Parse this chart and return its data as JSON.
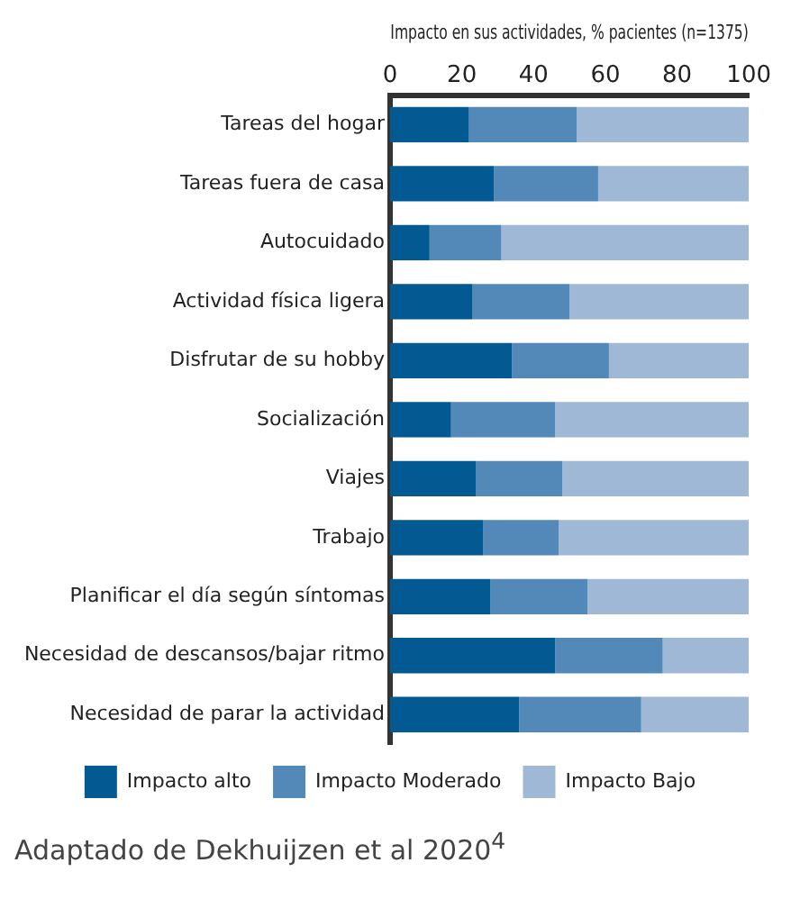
{
  "chart_data": {
    "type": "bar",
    "orientation": "horizontal",
    "stacked": true,
    "xlabel": "Impacto en sus actividades, % pacientes (n=1375)",
    "categories": [
      "Tareas del hogar",
      "Tareas fuera de casa",
      "Autocuidado",
      "Actividad física ligera",
      "Disfrutar de su hobby",
      "Socialización",
      "Viajes",
      "Trabajo",
      "Planificar el día según síntomas",
      "Necesidad de descansos/bajar ritmo",
      "Necesidad de parar la actividad"
    ],
    "series": [
      {
        "name": "Impacto alto",
        "color": "#035a93",
        "values": [
          22,
          29,
          11,
          23,
          34,
          17,
          24,
          26,
          28,
          46,
          36
        ]
      },
      {
        "name": "Impacto Moderado",
        "color": "#5289b8",
        "values": [
          30,
          29,
          20,
          27,
          27,
          29,
          24,
          21,
          27,
          30,
          34
        ]
      },
      {
        "name": "Impacto Bajo",
        "color": "#9fb8d6",
        "values": [
          48,
          42,
          69,
          50,
          39,
          54,
          52,
          53,
          45,
          24,
          30
        ]
      }
    ],
    "xlim": [
      0,
      100
    ],
    "xticks": [
      0,
      20,
      40,
      60,
      80,
      100
    ],
    "grid": false,
    "legend": "bottom",
    "annotations": [
      "Adaptado de Dekhuijzen et al 2020$^{4}$"
    ]
  }
}
